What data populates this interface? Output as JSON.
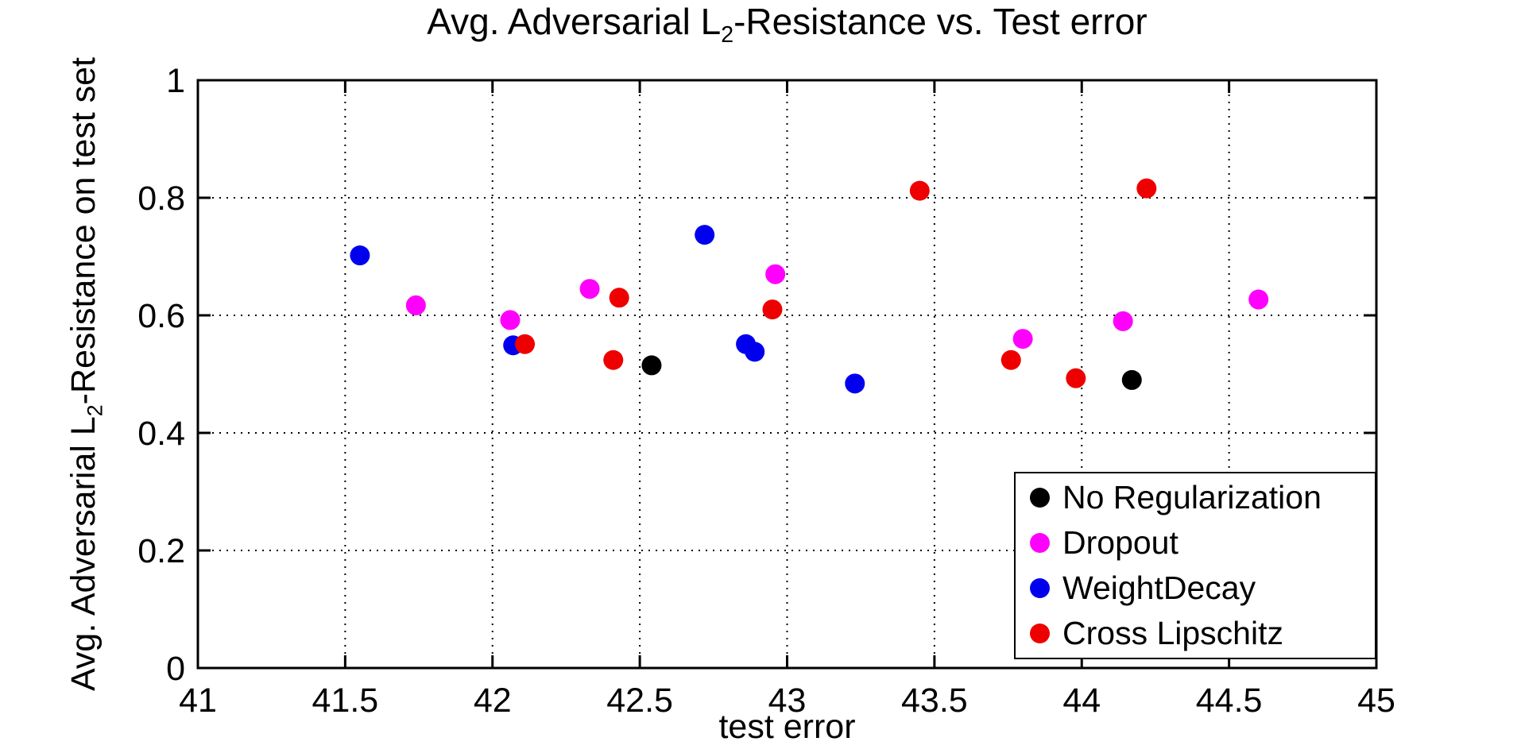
{
  "chart_data": {
    "type": "scatter",
    "title": "Avg. Adversarial L2-Resistance vs. Test error",
    "title_parts": {
      "prefix": "Avg. Adversarial L",
      "sub": "2",
      "suffix": "-Resistance vs. Test error"
    },
    "xlabel": "test error",
    "ylabel": "Avg. Adversarial L2-Resistance on test set",
    "ylabel_parts": {
      "prefix": "Avg. Adversarial L",
      "sub": "2",
      "suffix": "-Resistance on test set"
    },
    "xlim": [
      41,
      45
    ],
    "ylim": [
      0,
      1
    ],
    "xticks": {
      "values": [
        41,
        41.5,
        42,
        42.5,
        43,
        43.5,
        44,
        44.5,
        45
      ],
      "labels": [
        "41",
        "41.5",
        "42",
        "42.5",
        "43",
        "43.5",
        "44",
        "44.5",
        "45"
      ]
    },
    "yticks": {
      "values": [
        0,
        0.2,
        0.4,
        0.6,
        0.8,
        1
      ],
      "labels": [
        "0",
        "0.2",
        "0.4",
        "0.6",
        "0.8",
        "1"
      ]
    },
    "grid": "dotted",
    "legend_position": "inside-bottom-right",
    "axis_color": "#000000",
    "background": "#FFFFFF",
    "marker": "filled-circle",
    "series": [
      {
        "name": "No Regularization",
        "color": "#000000",
        "points": [
          [
            42.54,
            0.515
          ],
          [
            44.17,
            0.49
          ]
        ]
      },
      {
        "name": "Dropout",
        "color": "#FF00FF",
        "points": [
          [
            41.74,
            0.617
          ],
          [
            42.06,
            0.592
          ],
          [
            42.33,
            0.645
          ],
          [
            42.96,
            0.67
          ],
          [
            43.8,
            0.56
          ],
          [
            44.14,
            0.59
          ],
          [
            44.6,
            0.627
          ]
        ]
      },
      {
        "name": "WeightDecay",
        "color": "#0000EE",
        "points": [
          [
            41.55,
            0.702
          ],
          [
            42.07,
            0.549
          ],
          [
            42.72,
            0.737
          ],
          [
            42.86,
            0.551
          ],
          [
            42.89,
            0.538
          ],
          [
            43.23,
            0.484
          ]
        ]
      },
      {
        "name": "Cross Lipschitz",
        "color": "#EE0000",
        "points": [
          [
            42.11,
            0.551
          ],
          [
            42.41,
            0.524
          ],
          [
            42.43,
            0.63
          ],
          [
            42.95,
            0.61
          ],
          [
            43.45,
            0.812
          ],
          [
            43.76,
            0.524
          ],
          [
            43.98,
            0.493
          ],
          [
            44.22,
            0.816
          ]
        ]
      }
    ]
  }
}
